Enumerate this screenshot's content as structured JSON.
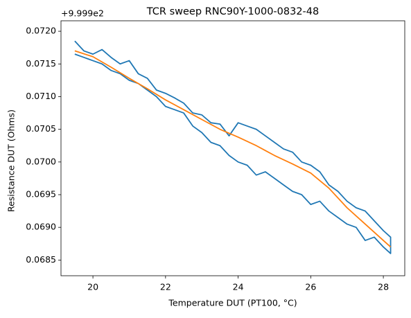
{
  "chart_data": {
    "type": "line",
    "title": "TCR sweep RNC90Y-1000-0832-48",
    "x_label": "Temperature DUT (PT100, °C)",
    "y_label": "Resistance DUT (Ohms)",
    "y_offset_label": "+9.999e2",
    "xlim": [
      19.12,
      28.59
    ],
    "ylim": [
      0.06826,
      0.07216
    ],
    "xticks": [
      20,
      22,
      24,
      26,
      28
    ],
    "yticks": [
      {
        "value": 0.0685,
        "label": "0.0685"
      },
      {
        "value": 0.069,
        "label": "0.0690"
      },
      {
        "value": 0.0695,
        "label": "0.0695"
      },
      {
        "value": 0.07,
        "label": "0.0700"
      },
      {
        "value": 0.0705,
        "label": "0.0705"
      },
      {
        "value": 0.071,
        "label": "0.0710"
      },
      {
        "value": 0.0715,
        "label": "0.0715"
      },
      {
        "value": 0.072,
        "label": "0.0720"
      }
    ],
    "grid": false,
    "series": [
      {
        "color": "#1f77b4",
        "x": [
          19.5,
          19.75,
          20.0,
          20.25,
          20.5,
          20.75,
          21.0,
          21.25,
          21.5,
          21.75,
          22.0,
          22.25,
          22.5,
          22.75,
          23.0,
          23.25,
          23.5,
          23.75,
          24.0,
          24.25,
          24.5,
          24.75,
          25.0,
          25.25,
          25.5,
          25.75,
          26.0,
          26.25,
          26.5,
          26.75,
          27.0,
          27.25,
          27.5,
          27.75,
          28.0,
          28.2,
          28.2,
          28.0,
          27.75,
          27.5,
          27.25,
          27.0,
          26.75,
          26.5,
          26.25,
          26.0,
          25.75,
          25.5,
          25.25,
          25.0,
          24.75,
          24.5,
          24.25,
          24.0,
          23.75,
          23.5,
          23.25,
          23.0,
          22.75,
          22.5,
          22.25,
          22.0,
          21.75,
          21.5,
          21.25,
          21.0,
          20.75,
          20.5,
          20.25,
          20.0,
          19.75,
          19.5
        ],
        "values": [
          0.07185,
          0.0717,
          0.07165,
          0.07172,
          0.0716,
          0.0715,
          0.07155,
          0.07135,
          0.07128,
          0.0711,
          0.07105,
          0.07098,
          0.0709,
          0.07075,
          0.07072,
          0.0706,
          0.07058,
          0.0704,
          0.0706,
          0.07055,
          0.0705,
          0.0704,
          0.0703,
          0.0702,
          0.07015,
          0.07,
          0.06995,
          0.06985,
          0.06965,
          0.06955,
          0.0694,
          0.0693,
          0.06925,
          0.0691,
          0.06895,
          0.06885,
          0.0686,
          0.0687,
          0.06885,
          0.0688,
          0.069,
          0.06905,
          0.06915,
          0.06925,
          0.0694,
          0.06935,
          0.0695,
          0.06955,
          0.06965,
          0.06975,
          0.06985,
          0.0698,
          0.06995,
          0.07,
          0.0701,
          0.07025,
          0.0703,
          0.07045,
          0.07055,
          0.07075,
          0.0708,
          0.07085,
          0.071,
          0.0711,
          0.0712,
          0.07125,
          0.07135,
          0.0714,
          0.0715,
          0.07155,
          0.0716,
          0.07165
        ]
      },
      {
        "color": "#ff7f0e",
        "x": [
          19.5,
          20.0,
          20.5,
          21.0,
          21.5,
          22.0,
          22.5,
          23.0,
          23.5,
          24.0,
          24.5,
          25.0,
          25.5,
          26.0,
          26.5,
          27.0,
          27.5,
          28.0,
          28.2
        ],
        "values": [
          0.0717,
          0.07161,
          0.07145,
          0.07128,
          0.07112,
          0.07095,
          0.0708,
          0.07065,
          0.0705,
          0.07038,
          0.07025,
          0.0701,
          0.06997,
          0.06983,
          0.0696,
          0.0693,
          0.06905,
          0.0688,
          0.0687
        ]
      }
    ]
  }
}
